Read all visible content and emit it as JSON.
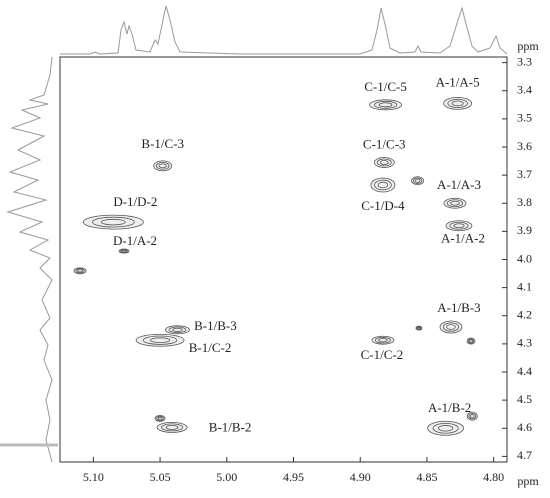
{
  "chart_data": {
    "type": "scatter",
    "x_label": "ppm",
    "y_label": "ppm",
    "xlim": [
      5.125,
      4.79
    ],
    "ylim": [
      3.28,
      4.72
    ],
    "xticks": [
      {
        "value": 5.1,
        "label": "5.10"
      },
      5.05,
      {
        "value": 5,
        "label": "5.00"
      },
      4.95,
      {
        "value": 4.9,
        "label": "4.90"
      },
      4.85,
      {
        "value": 4.8,
        "label": "4.80"
      }
    ],
    "yticks": [
      3.3,
      3.4,
      3.5,
      3.6,
      3.7,
      3.8,
      3.9,
      {
        "value": 4,
        "label": "4.0"
      },
      4.1,
      4.2,
      4.3,
      4.4,
      4.5,
      4.6,
      4.7
    ],
    "color": "#555555",
    "series": [
      {
        "x": [
          4.827,
          4.881,
          5.048,
          4.882,
          4.883,
          4.829,
          5.085,
          4.826,
          5.077,
          5.037,
          5.05,
          4.883,
          4.832,
          5.041,
          4.836,
          4.857,
          5.11,
          4.817,
          5.05,
          4.816,
          4.856
        ],
        "values": [
          3.445,
          3.45,
          3.667,
          3.655,
          3.735,
          3.8,
          3.867,
          3.88,
          3.97,
          4.25,
          4.287,
          4.287,
          4.24,
          4.597,
          4.6,
          3.72,
          4.04,
          4.29,
          4.565,
          4.557,
          4.244
        ],
        "labels": [
          "A-1/A-5",
          "C-1/C-5",
          "B-1/C-3",
          "C-1/C-3",
          "C-1/D-4",
          "A-1/A-3",
          "D-1/D-2",
          "A-1/A-2",
          "D-1/A-2",
          "B-1/B-3",
          "B-1/C-2",
          "C-1/C-2",
          "A-1/B-3",
          "B-1/B-2",
          "A-1/B-2",
          null,
          null,
          null,
          null,
          null,
          null
        ]
      }
    ]
  }
}
